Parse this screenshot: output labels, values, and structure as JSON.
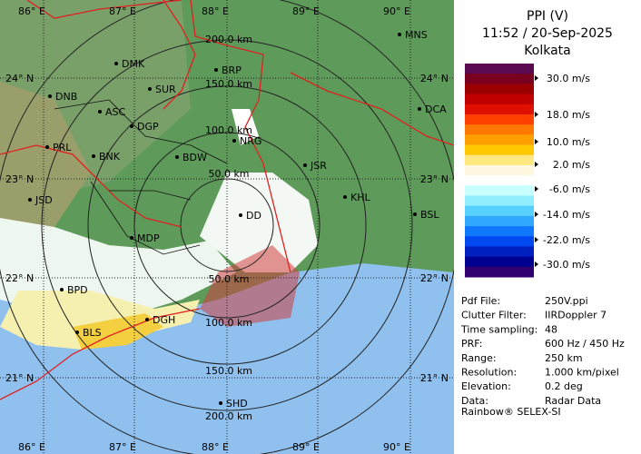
{
  "map": {
    "lon_labels_top": [
      "86° E",
      "87° E",
      "88° E",
      "89° E",
      "90° E"
    ],
    "lon_labels_bottom": [
      "86° E",
      "87° E",
      "88° E",
      "89° E",
      "90° E"
    ],
    "lat_labels_left": [
      "24° N",
      "23° N",
      "22° N",
      "21° N"
    ],
    "lat_labels_right": [
      "24° N",
      "23° N",
      "22° N",
      "21° N"
    ],
    "range_labels": [
      "200.0 km",
      "150.0 km",
      "100.0 km",
      "50.0 km",
      "50.0 km",
      "100.0 km",
      "150.0 km",
      "200.0 km"
    ],
    "stations": [
      "MNS",
      "DMK",
      "BRP",
      "DNB",
      "SUR",
      "ASC",
      "DCA",
      "DGP",
      "NRG",
      "PRL",
      "BNK",
      "BDW",
      "JSR",
      "KHL",
      "JSD",
      "BSL",
      "DD",
      "MDP",
      "BPD",
      "DGH",
      "BLS",
      "SHD"
    ]
  },
  "panel": {
    "title": "PPI (V)",
    "time": "11:52 / 20-Sep-2025",
    "site": "Kolkata",
    "scale_labels": [
      "30.0 m/s",
      "18.0 m/s",
      "10.0 m/s",
      "2.0 m/s",
      "-6.0 m/s",
      "-14.0 m/s",
      "-22.0 m/s",
      "-30.0 m/s"
    ],
    "info": [
      [
        "Pdf File:",
        "250V.ppi"
      ],
      [
        "Clutter Filter:",
        "IIRDoppler 7"
      ],
      [
        "Time sampling:",
        "48"
      ],
      [
        "PRF:",
        "600 Hz / 450 Hz"
      ],
      [
        "Range:",
        "250 km"
      ],
      [
        "Resolution:",
        "1.000 km/pixel"
      ],
      [
        "Elevation:",
        "0.2 deg"
      ],
      [
        "Data:",
        "Radar Data"
      ]
    ],
    "footer": "Rainbow® SELEX-SI"
  }
}
